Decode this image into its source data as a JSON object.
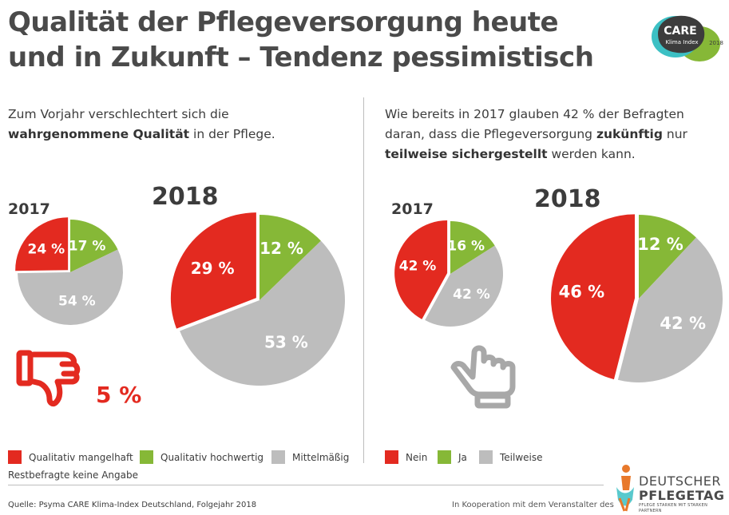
{
  "title": {
    "line1": "Qualität der Pflegeversorgung heute",
    "line2": "und in Zukunft – Tendenz pessimistisch"
  },
  "logo": {
    "brand": "CARE",
    "sub": "Klima Index",
    "year": "2018"
  },
  "left": {
    "intro_a": "Zum Vorjahr verschlechtert sich die",
    "intro_b_bold": "wahrgenommene Qualität",
    "intro_c": " in der Pflege.",
    "thumb_percent": "5 %",
    "note": "Restbefragte keine Angabe",
    "legend": [
      {
        "label": "Qualitativ mangelhaft",
        "color": "#e32a20"
      },
      {
        "label": "Qualitativ hochwertig",
        "color": "#86b837"
      },
      {
        "label": "Mittelmäßig",
        "color": "#bdbdbd"
      }
    ]
  },
  "right": {
    "intro_a": "Wie bereits in 2017 glauben 42 % der Befragten",
    "intro_b": "daran, dass die Pflegeversorgung ",
    "intro_b_bold": "zukünftig",
    "intro_b_end": " nur",
    "intro_c_bold": "teilweise sichergestellt",
    "intro_c_end": " werden kann.",
    "legend": [
      {
        "label": "Nein",
        "color": "#e32a20"
      },
      {
        "label": "Ja",
        "color": "#86b837"
      },
      {
        "label": "Teilweise",
        "color": "#bdbdbd"
      }
    ]
  },
  "chart_data": [
    {
      "type": "pie",
      "title": "2017",
      "labels": [
        "Qualitativ mangelhaft",
        "Qualitativ hochwertig",
        "Mittelmäßig"
      ],
      "values": [
        24,
        17,
        54
      ],
      "value_labels": [
        "24 %",
        "17 %",
        "54 %"
      ],
      "colors": [
        "#e32a20",
        "#86b837",
        "#bdbdbd"
      ]
    },
    {
      "type": "pie",
      "title": "2018",
      "labels": [
        "Qualitativ mangelhaft",
        "Qualitativ hochwertig",
        "Mittelmäßig"
      ],
      "values": [
        29,
        12,
        53
      ],
      "value_labels": [
        "29 %",
        "12 %",
        "53 %"
      ],
      "colors": [
        "#e32a20",
        "#86b837",
        "#bdbdbd"
      ]
    },
    {
      "type": "pie",
      "title": "2017",
      "labels": [
        "Nein",
        "Ja",
        "Teilweise"
      ],
      "values": [
        42,
        16,
        42
      ],
      "value_labels": [
        "42 %",
        "16 %",
        "42 %"
      ],
      "colors": [
        "#e32a20",
        "#86b837",
        "#bdbdbd"
      ]
    },
    {
      "type": "pie",
      "title": "2018",
      "labels": [
        "Nein",
        "Ja",
        "Teilweise"
      ],
      "values": [
        46,
        12,
        42
      ],
      "value_labels": [
        "46 %",
        "12 %",
        "42 %"
      ],
      "colors": [
        "#e32a20",
        "#86b837",
        "#bdbdbd"
      ]
    }
  ],
  "footer": {
    "source": "Quelle: Psyma CARE Klima-Index Deutschland, Folgejahr 2018",
    "koop": "In Kooperation mit dem Veranstalter des",
    "dpt_line1": "DEUTSCHER",
    "dpt_line2": "PFLEGETAG",
    "dpt_line3": "PFLEGE STARKEN MIT STARKEN PARTNERN"
  }
}
